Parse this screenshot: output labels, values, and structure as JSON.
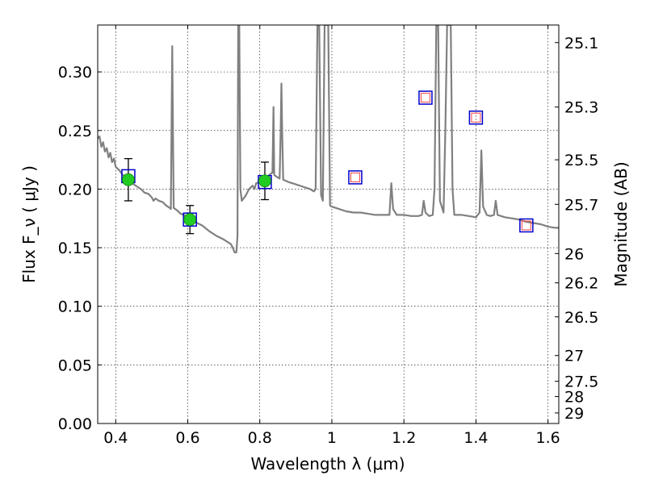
{
  "chart_data": {
    "type": "line",
    "xlabel": "Wavelength λ (μm)",
    "ylabel": "Flux F_ν ( μJy )",
    "ylabel_right": "Magnitude (AB)",
    "xlim": [
      0.35,
      1.63
    ],
    "ylim": [
      0.0,
      0.34
    ],
    "grid": true,
    "x_ticks": [
      {
        "value": 0.4,
        "label": "0.4"
      },
      {
        "value": 0.6,
        "label": "0.6"
      },
      {
        "value": 0.8,
        "label": "0.8"
      },
      {
        "value": 1.0,
        "label": "1"
      },
      {
        "value": 1.2,
        "label": "1.2"
      },
      {
        "value": 1.4,
        "label": "1.4"
      },
      {
        "value": 1.6,
        "label": "1.6"
      }
    ],
    "y_ticks": [
      {
        "value": 0.0,
        "label": "0.00"
      },
      {
        "value": 0.05,
        "label": "0.05"
      },
      {
        "value": 0.1,
        "label": "0.10"
      },
      {
        "value": 0.15,
        "label": "0.15"
      },
      {
        "value": 0.2,
        "label": "0.20"
      },
      {
        "value": 0.25,
        "label": "0.25"
      },
      {
        "value": 0.3,
        "label": "0.30"
      }
    ],
    "right_ticks": [
      {
        "flux": 0.325,
        "label": "25.1"
      },
      {
        "flux": 0.27,
        "label": "25.3"
      },
      {
        "flux": 0.225,
        "label": "25.5"
      },
      {
        "flux": 0.187,
        "label": "25.7"
      },
      {
        "flux": 0.145,
        "label": "26"
      },
      {
        "flux": 0.12,
        "label": "26.2"
      },
      {
        "flux": 0.091,
        "label": "26.5"
      },
      {
        "flux": 0.058,
        "label": "27"
      },
      {
        "flux": 0.036,
        "label": "27.5"
      },
      {
        "flux": 0.023,
        "label": "28"
      },
      {
        "flux": 0.009,
        "label": "29"
      }
    ],
    "series": [
      {
        "style": "spectrum",
        "color": "#808080",
        "points": [
          [
            0.35,
            0.243
          ],
          [
            0.355,
            0.245
          ],
          [
            0.36,
            0.236
          ],
          [
            0.365,
            0.24
          ],
          [
            0.37,
            0.232
          ],
          [
            0.375,
            0.235
          ],
          [
            0.38,
            0.227
          ],
          [
            0.385,
            0.231
          ],
          [
            0.39,
            0.223
          ],
          [
            0.395,
            0.226
          ],
          [
            0.4,
            0.219
          ],
          [
            0.41,
            0.216
          ],
          [
            0.42,
            0.212
          ],
          [
            0.43,
            0.21
          ],
          [
            0.44,
            0.207
          ],
          [
            0.45,
            0.204
          ],
          [
            0.46,
            0.202
          ],
          [
            0.47,
            0.2
          ],
          [
            0.48,
            0.197
          ],
          [
            0.49,
            0.196
          ],
          [
            0.5,
            0.193
          ],
          [
            0.505,
            0.19
          ],
          [
            0.51,
            0.192
          ],
          [
            0.52,
            0.19
          ],
          [
            0.53,
            0.189
          ],
          [
            0.54,
            0.186
          ],
          [
            0.55,
            0.184
          ],
          [
            0.553,
            0.183
          ],
          [
            0.555,
            0.25
          ],
          [
            0.557,
            0.322
          ],
          [
            0.559,
            0.25
          ],
          [
            0.561,
            0.184
          ],
          [
            0.57,
            0.182
          ],
          [
            0.58,
            0.179
          ],
          [
            0.59,
            0.178
          ],
          [
            0.6,
            0.175
          ],
          [
            0.62,
            0.172
          ],
          [
            0.64,
            0.169
          ],
          [
            0.66,
            0.164
          ],
          [
            0.68,
            0.16
          ],
          [
            0.7,
            0.157
          ],
          [
            0.71,
            0.155
          ],
          [
            0.72,
            0.153
          ],
          [
            0.725,
            0.15
          ],
          [
            0.73,
            0.146
          ],
          [
            0.735,
            0.146
          ],
          [
            0.738,
            0.16
          ],
          [
            0.74,
            0.34
          ],
          [
            0.743,
            0.34
          ],
          [
            0.746,
            0.2
          ],
          [
            0.75,
            0.19
          ],
          [
            0.76,
            0.194
          ],
          [
            0.77,
            0.2
          ],
          [
            0.78,
            0.203
          ],
          [
            0.785,
            0.2
          ],
          [
            0.79,
            0.205
          ],
          [
            0.8,
            0.206
          ],
          [
            0.81,
            0.209
          ],
          [
            0.82,
            0.21
          ],
          [
            0.83,
            0.213
          ],
          [
            0.835,
            0.214
          ],
          [
            0.838,
            0.27
          ],
          [
            0.84,
            0.212
          ],
          [
            0.85,
            0.21
          ],
          [
            0.855,
            0.209
          ],
          [
            0.858,
            0.25
          ],
          [
            0.86,
            0.29
          ],
          [
            0.862,
            0.25
          ],
          [
            0.865,
            0.208
          ],
          [
            0.88,
            0.206
          ],
          [
            0.9,
            0.204
          ],
          [
            0.92,
            0.202
          ],
          [
            0.94,
            0.2
          ],
          [
            0.95,
            0.198
          ],
          [
            0.955,
            0.2
          ],
          [
            0.96,
            0.34
          ],
          [
            0.965,
            0.34
          ],
          [
            0.97,
            0.195
          ],
          [
            0.975,
            0.19
          ],
          [
            0.98,
            0.34
          ],
          [
            0.99,
            0.34
          ],
          [
            0.995,
            0.186
          ],
          [
            1.0,
            0.185
          ],
          [
            1.02,
            0.183
          ],
          [
            1.04,
            0.181
          ],
          [
            1.06,
            0.18
          ],
          [
            1.08,
            0.18
          ],
          [
            1.1,
            0.179
          ],
          [
            1.12,
            0.178
          ],
          [
            1.14,
            0.178
          ],
          [
            1.16,
            0.178
          ],
          [
            1.165,
            0.205
          ],
          [
            1.17,
            0.183
          ],
          [
            1.18,
            0.178
          ],
          [
            1.2,
            0.178
          ],
          [
            1.22,
            0.177
          ],
          [
            1.24,
            0.177
          ],
          [
            1.25,
            0.178
          ],
          [
            1.255,
            0.19
          ],
          [
            1.26,
            0.18
          ],
          [
            1.27,
            0.177
          ],
          [
            1.28,
            0.178
          ],
          [
            1.285,
            0.2
          ],
          [
            1.29,
            0.34
          ],
          [
            1.295,
            0.34
          ],
          [
            1.3,
            0.19
          ],
          [
            1.31,
            0.18
          ],
          [
            1.315,
            0.25
          ],
          [
            1.32,
            0.34
          ],
          [
            1.33,
            0.34
          ],
          [
            1.335,
            0.2
          ],
          [
            1.34,
            0.178
          ],
          [
            1.36,
            0.178
          ],
          [
            1.38,
            0.177
          ],
          [
            1.4,
            0.176
          ],
          [
            1.41,
            0.18
          ],
          [
            1.415,
            0.233
          ],
          [
            1.42,
            0.185
          ],
          [
            1.43,
            0.178
          ],
          [
            1.44,
            0.177
          ],
          [
            1.45,
            0.178
          ],
          [
            1.455,
            0.19
          ],
          [
            1.46,
            0.178
          ],
          [
            1.48,
            0.176
          ],
          [
            1.5,
            0.175
          ],
          [
            1.52,
            0.174
          ],
          [
            1.54,
            0.172
          ],
          [
            1.56,
            0.171
          ],
          [
            1.58,
            0.17
          ],
          [
            1.6,
            0.168
          ],
          [
            1.62,
            0.167
          ],
          [
            1.63,
            0.167
          ]
        ]
      },
      {
        "style": "observed-photometry",
        "marker": "circle",
        "color": "#22cc22",
        "points": [
          {
            "x": 0.435,
            "y": 0.208,
            "err": 0.018
          },
          {
            "x": 0.606,
            "y": 0.174,
            "err": 0.012
          },
          {
            "x": 0.814,
            "y": 0.207,
            "err": 0.016
          }
        ]
      },
      {
        "style": "model-photometry",
        "marker": "open-square",
        "color": "#0000cc",
        "points": [
          {
            "x": 0.435,
            "y": 0.211
          },
          {
            "x": 0.606,
            "y": 0.174
          },
          {
            "x": 0.814,
            "y": 0.206
          },
          {
            "x": 1.065,
            "y": 0.21
          },
          {
            "x": 1.26,
            "y": 0.278
          },
          {
            "x": 1.4,
            "y": 0.261
          },
          {
            "x": 1.54,
            "y": 0.169
          }
        ]
      },
      {
        "style": "predicted-photometry",
        "marker": "open-square-small",
        "color": "#ff4444",
        "points": [
          {
            "x": 1.065,
            "y": 0.21
          },
          {
            "x": 1.26,
            "y": 0.278
          },
          {
            "x": 1.4,
            "y": 0.261
          },
          {
            "x": 1.54,
            "y": 0.169
          }
        ]
      }
    ]
  }
}
